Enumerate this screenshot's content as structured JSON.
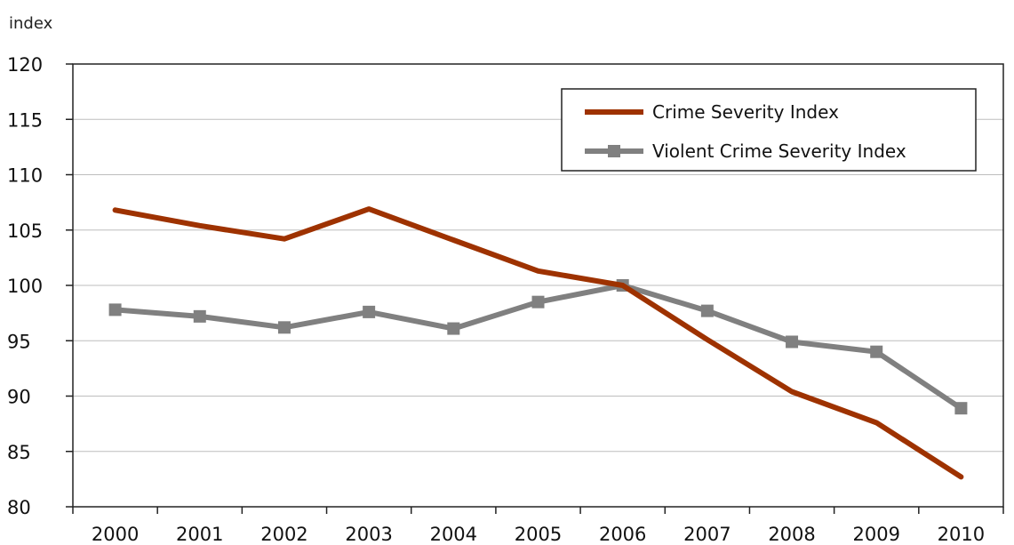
{
  "chart_data": {
    "type": "line",
    "ylabel": "index",
    "xlabel": "",
    "categories": [
      "2000",
      "2001",
      "2002",
      "2003",
      "2004",
      "2005",
      "2006",
      "2007",
      "2008",
      "2009",
      "2010"
    ],
    "ylim": [
      80,
      120
    ],
    "yticks": [
      80,
      85,
      90,
      95,
      100,
      105,
      110,
      115,
      120
    ],
    "grid": true,
    "legend_position": "top-right",
    "series": [
      {
        "name": "Crime Severity Index",
        "color": "#9e3200",
        "marker": "none",
        "values": [
          106.8,
          105.4,
          104.2,
          106.9,
          104.1,
          101.3,
          100.0,
          95.1,
          90.4,
          87.6,
          82.7
        ]
      },
      {
        "name": "Violent Crime Severity Index",
        "color": "#808080",
        "marker": "square",
        "values": [
          97.8,
          97.2,
          96.2,
          97.6,
          96.1,
          98.5,
          100.0,
          97.7,
          94.9,
          94.0,
          88.9
        ]
      }
    ]
  }
}
